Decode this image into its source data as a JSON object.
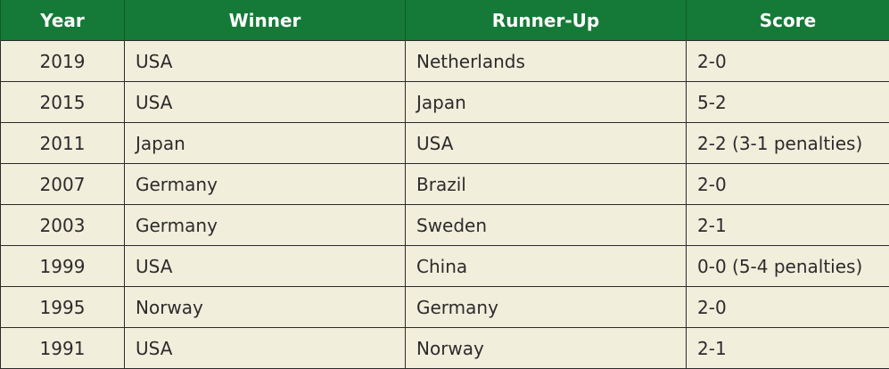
{
  "header": {
    "year": "Year",
    "winner": "Winner",
    "runner_up": "Runner-Up",
    "score": "Score"
  },
  "rows": [
    {
      "year": "2019",
      "winner": "USA",
      "runner_up": "Netherlands",
      "score": "2-0"
    },
    {
      "year": "2015",
      "winner": "USA",
      "runner_up": "Japan",
      "score": "5-2"
    },
    {
      "year": "2011",
      "winner": "Japan",
      "runner_up": "USA",
      "score": "2-2 (3-1 penalties)"
    },
    {
      "year": "2007",
      "winner": "Germany",
      "runner_up": "Brazil",
      "score": "2-0"
    },
    {
      "year": "2003",
      "winner": "Germany",
      "runner_up": "Sweden",
      "score": "2-1"
    },
    {
      "year": "1999",
      "winner": "USA",
      "runner_up": "China",
      "score": "0-0 (5-4 penalties)"
    },
    {
      "year": "1995",
      "winner": "Norway",
      "runner_up": "Germany",
      "score": "2-0"
    },
    {
      "year": "1991",
      "winner": "USA",
      "runner_up": "Norway",
      "score": "2-1"
    }
  ],
  "colors": {
    "header_bg": "#157a37",
    "header_text": "#ffffff",
    "row_bg": "#f2eedc",
    "border": "#2b2b2b"
  }
}
